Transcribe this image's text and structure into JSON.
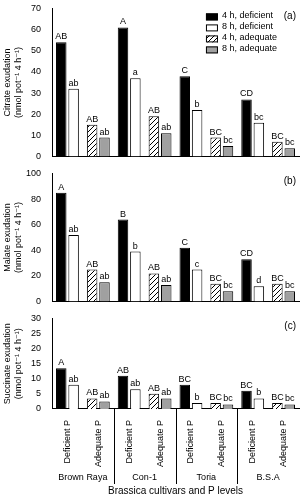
{
  "chart_data": [
    {
      "type": "bar",
      "panel_label": "(a)",
      "y_label": [
        "Citrate exudation",
        "(nmol pot⁻¹ 4 h⁻¹)"
      ],
      "categories": [
        null,
        null,
        null,
        null,
        null,
        null,
        null,
        null
      ],
      "tick_labels": "y",
      "legend": "upper right",
      "grid": false,
      "ylim": [
        0,
        70
      ],
      "yticks": [
        0,
        10,
        20,
        30,
        40,
        50,
        60,
        70
      ],
      "series": [
        {
          "name": "4 h, deficient",
          "color": "#000000",
          "values": [
            54,
            null,
            61,
            null,
            38,
            null,
            27,
            null
          ],
          "letters": [
            "AB",
            null,
            "A",
            null,
            "C",
            null,
            "CD",
            null
          ]
        },
        {
          "name": "8 h, deficient",
          "color": "#ffffff",
          "values": [
            32,
            null,
            37,
            null,
            22,
            null,
            16,
            null
          ],
          "letters": [
            "ab",
            null,
            "a",
            null,
            "b",
            null,
            "bc",
            null
          ]
        },
        {
          "name": "4 h, adequate",
          "color": "#000000",
          "marker": "hatch",
          "values": [
            null,
            15,
            null,
            19,
            null,
            9,
            null,
            7
          ],
          "letters": [
            null,
            "AB",
            null,
            "AB",
            null,
            "BC",
            null,
            "BC"
          ]
        },
        {
          "name": "8 h, adequate",
          "color": "#a0a0a0",
          "values": [
            null,
            9,
            null,
            11,
            null,
            5,
            null,
            4
          ],
          "letters": [
            null,
            "ab",
            null,
            "ab",
            null,
            "bc",
            null,
            "bc"
          ]
        }
      ]
    },
    {
      "type": "bar",
      "panel_label": "(b)",
      "y_label": [
        "Malate exudation",
        "(nmol pot⁻¹ 4 h⁻¹)"
      ],
      "categories": [
        null,
        null,
        null,
        null,
        null,
        null,
        null,
        null
      ],
      "tick_labels": "y",
      "grid": false,
      "ylim": [
        0,
        100
      ],
      "yticks": [
        0,
        20,
        40,
        60,
        80,
        100
      ],
      "series": [
        {
          "color": "#000000",
          "values": [
            85,
            null,
            64,
            null,
            42,
            null,
            33,
            null
          ],
          "letters": [
            "A",
            null,
            "B",
            null,
            "C",
            null,
            "CD",
            null
          ]
        },
        {
          "color": "#ffffff",
          "values": [
            52,
            null,
            39,
            null,
            25,
            null,
            12,
            null
          ],
          "letters": [
            "ab",
            null,
            "b",
            null,
            "c",
            null,
            "d",
            null
          ]
        },
        {
          "color": "#000000",
          "marker": "hatch",
          "values": [
            null,
            25,
            null,
            22,
            null,
            14,
            null,
            14
          ],
          "letters": [
            null,
            "AB",
            null,
            "AB",
            null,
            "BC",
            null,
            "BC"
          ]
        },
        {
          "color": "#a0a0a0",
          "values": [
            null,
            15,
            null,
            13,
            null,
            8,
            null,
            8
          ],
          "letters": [
            null,
            "ab",
            null,
            "ab",
            null,
            "bc",
            null,
            "bc"
          ]
        }
      ]
    },
    {
      "type": "bar",
      "panel_label": "(c)",
      "y_label": [
        "Succinate exudation",
        "(nmol pot⁻¹ 4 h⁻¹)"
      ],
      "x_label": "Brassica cultivars and P levels",
      "categories": [
        "Deficient P",
        "Adequate P",
        "Deficient P",
        "Adequate P",
        "Deficient P",
        "Adequate P",
        "Deficient P",
        "Adequate P"
      ],
      "groups": [
        "Brown Raya",
        "Con-1",
        "Toria",
        "B.S.A"
      ],
      "grid": false,
      "ylim": [
        0,
        30
      ],
      "yticks": [
        0,
        5,
        10,
        15,
        20,
        25,
        30
      ],
      "series": [
        {
          "color": "#000000",
          "values": [
            13.5,
            null,
            11,
            null,
            8,
            null,
            6,
            null
          ],
          "letters": [
            "A",
            null,
            "AB",
            null,
            "BC",
            null,
            "BC",
            null
          ]
        },
        {
          "color": "#ffffff",
          "values": [
            8,
            null,
            6.5,
            null,
            2,
            null,
            3.5,
            null
          ],
          "letters": [
            "ab",
            null,
            "ab",
            null,
            "b",
            null,
            "b",
            null
          ]
        },
        {
          "color": "#000000",
          "marker": "hatch",
          "values": [
            null,
            3.5,
            null,
            5,
            null,
            2,
            null,
            2
          ],
          "letters": [
            null,
            "AB",
            null,
            "AB",
            null,
            "BC",
            null,
            "BC"
          ]
        },
        {
          "color": "#a0a0a0",
          "values": [
            null,
            2.5,
            null,
            3.5,
            null,
            1.5,
            null,
            1.5
          ],
          "letters": [
            null,
            "ab",
            null,
            "ab",
            null,
            "bc",
            null,
            "bc"
          ]
        }
      ]
    }
  ]
}
